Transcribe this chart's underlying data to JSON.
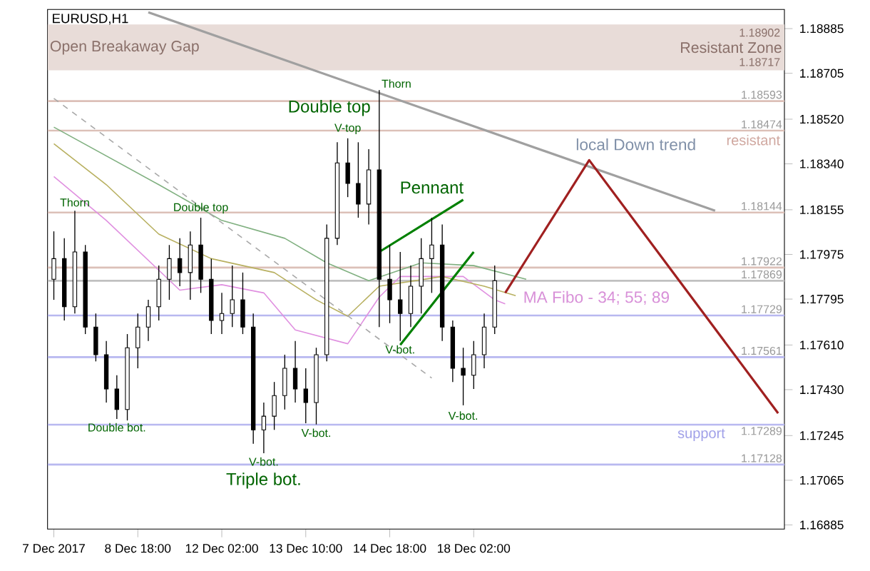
{
  "chart_data": {
    "type": "candlestick",
    "title": "EURUSD,H1",
    "color": "#000000",
    "categories": [
      "7 Dec 2017",
      null,
      null,
      null,
      null,
      null,
      null,
      null,
      "8 Dec 18:00",
      null,
      null,
      null,
      null,
      null,
      null,
      null,
      "12 Dec 02:00",
      null,
      null,
      null,
      null,
      null,
      null,
      null,
      "13 Dec 10:00",
      null,
      null,
      null,
      null,
      null,
      null,
      null,
      "14 Dec 18:00",
      null,
      null,
      null,
      null,
      null,
      null,
      null,
      "18 Dec 02:00",
      null,
      null,
      null,
      null,
      null,
      null,
      null,
      null,
      null,
      null,
      null,
      null,
      null,
      null,
      null,
      null,
      null,
      null,
      null,
      null,
      null,
      null,
      null,
      null,
      null,
      null,
      null,
      null,
      null
    ],
    "ohlc": [
      [
        1.17875,
        1.18068,
        1.17792,
        1.17958
      ],
      [
        1.17958,
        1.1804,
        1.17709,
        1.17764
      ],
      [
        1.17764,
        1.18151,
        1.17737,
        1.17985
      ],
      [
        1.17985,
        1.18013,
        1.17654,
        1.17682
      ],
      [
        1.17682,
        1.17737,
        1.17544,
        1.17571
      ],
      [
        1.17571,
        1.17626,
        1.17378,
        1.17433
      ],
      [
        1.17433,
        1.17488,
        1.17312,
        1.1735
      ],
      [
        1.1735,
        1.17654,
        1.17306,
        1.17599
      ],
      [
        1.17599,
        1.17737,
        1.17516,
        1.17682
      ],
      [
        1.17682,
        1.17792,
        1.17626,
        1.17764
      ],
      [
        1.17764,
        1.1793,
        1.17709,
        1.17875
      ],
      [
        1.17875,
        1.18013,
        1.17792,
        1.17958
      ],
      [
        1.17958,
        1.1804,
        1.17847,
        1.17902
      ],
      [
        1.17902,
        1.18068,
        1.17792,
        1.18013
      ],
      [
        1.18013,
        1.18123,
        1.1782,
        1.17875
      ],
      [
        1.17875,
        1.17958,
        1.17654,
        1.17709
      ],
      [
        1.17709,
        1.1782,
        1.17654,
        1.17737
      ],
      [
        1.17737,
        1.1793,
        1.17682,
        1.17792
      ],
      [
        1.17792,
        1.17902,
        1.17654,
        1.17682
      ],
      [
        1.17682,
        1.17737,
        1.17212,
        1.17268
      ],
      [
        1.17268,
        1.17378,
        1.17174,
        1.17323
      ],
      [
        1.17323,
        1.17461,
        1.17268,
        1.17406
      ],
      [
        1.17406,
        1.17571,
        1.1735,
        1.17516
      ],
      [
        1.17516,
        1.17626,
        1.17378,
        1.17433
      ],
      [
        1.17433,
        1.17516,
        1.17295,
        1.17378
      ],
      [
        1.17378,
        1.17599,
        1.1729,
        1.17571
      ],
      [
        1.17571,
        1.18096,
        1.17544,
        1.1804
      ],
      [
        1.1804,
        1.18427,
        1.18013,
        1.18344
      ],
      [
        1.18344,
        1.18443,
        1.18206,
        1.18261
      ],
      [
        1.18261,
        1.18427,
        1.18123,
        1.18178
      ],
      [
        1.18178,
        1.18399,
        1.18096,
        1.18316
      ],
      [
        1.18316,
        1.18637,
        1.17682,
        1.17875
      ],
      [
        1.17875,
        1.18013,
        1.17698,
        1.17792
      ],
      [
        1.17792,
        1.17985,
        1.17626,
        1.17737
      ],
      [
        1.17737,
        1.1793,
        1.17682,
        1.17847
      ],
      [
        1.17847,
        1.1804,
        1.17737,
        1.17958
      ],
      [
        1.17958,
        1.18123,
        1.1782,
        1.18013
      ],
      [
        1.18013,
        1.18096,
        1.17626,
        1.17682
      ],
      [
        1.17682,
        1.17709,
        1.17461,
        1.17516
      ],
      [
        1.17516,
        1.17599,
        1.17367,
        1.17488
      ],
      [
        1.17488,
        1.17626,
        1.17433,
        1.17571
      ],
      [
        1.17571,
        1.17737,
        1.17516,
        1.17682
      ],
      [
        1.17682,
        1.1793,
        1.17654,
        1.17869
      ],
      null,
      null,
      null,
      null,
      null,
      null,
      null,
      null,
      null,
      null,
      null,
      null,
      null,
      null,
      null,
      null,
      null,
      null,
      null,
      null,
      null,
      null,
      null,
      null,
      null,
      null,
      null
    ],
    "series": [
      {
        "type": "line",
        "color": "#e090e0",
        "values": [
          1.18289,
          null,
          null,
          null,
          null,
          1.18112,
          null,
          null,
          null,
          null,
          null,
          null,
          1.17831,
          null,
          null,
          null,
          1.17853,
          null,
          null,
          null,
          1.1782,
          null,
          null,
          1.17671,
          null,
          null,
          null,
          null,
          1.17615,
          null,
          null,
          1.17803,
          null,
          1.17886,
          null,
          null,
          null,
          null,
          null,
          1.17886,
          null,
          null,
          1.17792,
          1.17776,
          null,
          null,
          null,
          null,
          null,
          null,
          null,
          null,
          null,
          null,
          null,
          null,
          null,
          null,
          null,
          null,
          null,
          null,
          null,
          null,
          null,
          null,
          null,
          null,
          null,
          null
        ]
      },
      {
        "type": "line",
        "color": "#b8b060",
        "values": [
          1.18421,
          null,
          null,
          null,
          null,
          1.18256,
          null,
          null,
          null,
          null,
          1.18057,
          null,
          null,
          null,
          null,
          1.17958,
          null,
          null,
          null,
          null,
          null,
          1.17902,
          null,
          null,
          null,
          1.17792,
          null,
          null,
          1.17726,
          null,
          null,
          1.17847,
          null,
          null,
          null,
          null,
          null,
          1.17886,
          null,
          null,
          null,
          1.17847,
          null,
          null,
          1.17809,
          null,
          null,
          null,
          null,
          null,
          null,
          null,
          null,
          null,
          null,
          null,
          null,
          null,
          null,
          null,
          null,
          null,
          null,
          null,
          null,
          null,
          null,
          null,
          null,
          null
        ]
      },
      {
        "type": "line",
        "color": "#80b080",
        "values": [
          1.18488,
          null,
          null,
          null,
          null,
          null,
          null,
          null,
          null,
          null,
          1.18256,
          null,
          null,
          null,
          null,
          null,
          1.18112,
          null,
          null,
          null,
          null,
          null,
          1.1804,
          null,
          null,
          null,
          1.17941,
          null,
          null,
          null,
          1.17869,
          null,
          null,
          null,
          null,
          1.17941,
          null,
          null,
          null,
          null,
          1.1793,
          null,
          null,
          null,
          null,
          1.17875,
          null,
          null,
          null,
          null,
          null,
          null,
          null,
          null,
          null,
          null,
          null,
          null,
          null,
          null,
          null,
          null,
          null,
          null,
          null,
          null,
          null,
          null,
          null,
          null
        ]
      },
      {
        "type": "line",
        "color": "#a8a8a8",
        "line_style": "dashed",
        "values": [
          1.18604,
          null,
          null,
          null,
          null,
          null,
          null,
          null,
          null,
          null,
          null,
          null,
          null,
          null,
          null,
          null,
          null,
          null,
          null,
          null,
          null,
          null,
          null,
          null,
          null,
          null,
          null,
          null,
          null,
          null,
          null,
          null,
          null,
          null,
          null,
          null,
          1.17477,
          null,
          null,
          null,
          null,
          null,
          null,
          null,
          null,
          null,
          null,
          null,
          null,
          null,
          null,
          null,
          null,
          null,
          null,
          null,
          null,
          null,
          null,
          null,
          null,
          null,
          null,
          null,
          null,
          null,
          null,
          null,
          null,
          null
        ]
      },
      {
        "type": "line",
        "color": "#a0a0a0",
        "values": [
          null,
          null,
          null,
          null,
          null,
          null,
          null,
          null,
          null,
          1.18951,
          null,
          null,
          null,
          null,
          null,
          null,
          null,
          null,
          null,
          null,
          null,
          null,
          null,
          null,
          null,
          null,
          null,
          null,
          null,
          null,
          null,
          null,
          null,
          null,
          null,
          null,
          null,
          null,
          null,
          null,
          null,
          null,
          null,
          null,
          null,
          null,
          null,
          null,
          null,
          null,
          null,
          null,
          null,
          null,
          null,
          null,
          null,
          null,
          null,
          null,
          null,
          null,
          null,
          1.18151,
          null,
          null,
          null,
          null,
          null,
          null
        ]
      },
      {
        "type": "line",
        "color": "#008000",
        "values": [
          null,
          null,
          null,
          null,
          null,
          null,
          null,
          null,
          null,
          null,
          null,
          null,
          null,
          null,
          null,
          null,
          null,
          null,
          null,
          null,
          null,
          null,
          null,
          null,
          null,
          null,
          null,
          null,
          null,
          null,
          null,
          1.17985,
          null,
          null,
          null,
          null,
          null,
          null,
          null,
          1.18195,
          null,
          null,
          null,
          null,
          null,
          null,
          null,
          null,
          null,
          null,
          null,
          null,
          null,
          null,
          null,
          null,
          null,
          null,
          null,
          null,
          null,
          null,
          null,
          null,
          null,
          null,
          null,
          null,
          null,
          null
        ]
      },
      {
        "type": "line",
        "color": "#008000",
        "values": [
          null,
          null,
          null,
          null,
          null,
          null,
          null,
          null,
          null,
          null,
          null,
          null,
          null,
          null,
          null,
          null,
          null,
          null,
          null,
          null,
          null,
          null,
          null,
          null,
          null,
          null,
          null,
          null,
          null,
          null,
          null,
          null,
          null,
          1.1761,
          null,
          null,
          null,
          null,
          null,
          null,
          1.17985,
          null,
          null,
          null,
          null,
          null,
          null,
          null,
          null,
          null,
          null,
          null,
          null,
          null,
          null,
          null,
          null,
          null,
          null,
          null,
          null,
          null,
          null,
          null,
          null,
          null,
          null,
          null,
          null,
          null
        ]
      },
      {
        "type": "line",
        "color": "#a02020",
        "values": [
          null,
          null,
          null,
          null,
          null,
          null,
          null,
          null,
          null,
          null,
          null,
          null,
          null,
          null,
          null,
          null,
          null,
          null,
          null,
          null,
          null,
          null,
          null,
          null,
          null,
          null,
          null,
          null,
          null,
          null,
          null,
          null,
          null,
          null,
          null,
          null,
          null,
          null,
          null,
          null,
          null,
          null,
          null,
          1.1782,
          null,
          null,
          null,
          null,
          null,
          null,
          null,
          1.18355,
          null,
          null,
          null,
          null,
          null,
          null,
          null,
          null,
          null,
          null,
          null,
          null,
          null,
          null,
          null,
          null,
          null,
          1.17335
        ]
      }
    ],
    "ylim": [
      1.16868,
      1.18962
    ],
    "yticks": [
      1.18885,
      1.18705,
      {
        "value": 1.1852,
        "label": "1.18520"
      },
      {
        "value": 1.1834,
        "label": "1.18340"
      },
      1.18155,
      1.17975,
      1.17795,
      {
        "value": 1.1761,
        "label": "1.17610"
      },
      {
        "value": 1.1743,
        "label": "1.17430"
      },
      1.17245,
      1.17065,
      1.16885
    ],
    "bands": [
      {
        "axis": "y",
        "from": 1.18717,
        "to": 1.18902,
        "label": "Resistant Zone",
        "color": "#e8dcd8"
      }
    ],
    "ref_lines": [
      {
        "axis": "y",
        "value": 1.18593,
        "label": "1.18593",
        "color": "#dcc0b8"
      },
      {
        "axis": "y",
        "value": 1.18474,
        "label": "1.18474",
        "color": "#dcc0b8"
      },
      {
        "axis": "y",
        "value": 1.18144,
        "label": "1.18144",
        "color": "#dcc0b8"
      },
      {
        "axis": "y",
        "value": 1.17922,
        "label": "1.17922",
        "color": "#dcc0b8"
      },
      {
        "axis": "y",
        "value": 1.17869,
        "label": "1.17869",
        "color": "#c0c0c0"
      },
      {
        "axis": "y",
        "value": 1.17729,
        "label": "1.17729",
        "color": "#b8b8f0"
      },
      {
        "axis": "y",
        "value": 1.17561,
        "label": "1.17561",
        "color": "#b8b8f0"
      },
      {
        "axis": "y",
        "value": 1.17289,
        "label": "1.17289",
        "color": "#b8b8f0"
      },
      {
        "axis": "y",
        "value": 1.17128,
        "label": "1.17128",
        "color": "#b8b8f0"
      }
    ],
    "annotations": [
      "Open Breakaway Gap",
      {
        "text": "1.18902",
        "y": 1.18902
      },
      {
        "text": "1.18717",
        "y": 1.18717
      },
      {
        "text": "resistant",
        "y": 1.18474
      },
      {
        "text": "support",
        "y": 1.17289
      },
      "local Down trend",
      "MA Fibo - 34; 55; 89",
      {
        "text": "Thorn",
        "y": 1.18151
      },
      {
        "text": "Double top",
        "y": 1.18123
      },
      {
        "text": "Double bot.",
        "y": 1.17312
      },
      {
        "text": "V-bot.",
        "y": 1.17174
      },
      {
        "text": "Triple bot.",
        "y": 1.17174
      },
      {
        "text": "V-bot.",
        "y": 1.1729
      },
      {
        "text": "V-top",
        "y": 1.18443
      },
      "Double top",
      "Thorn",
      "Pennant",
      {
        "text": "V-bot.",
        "y": 1.17626
      },
      {
        "text": "V-bot.",
        "y": 1.17367
      }
    ]
  }
}
